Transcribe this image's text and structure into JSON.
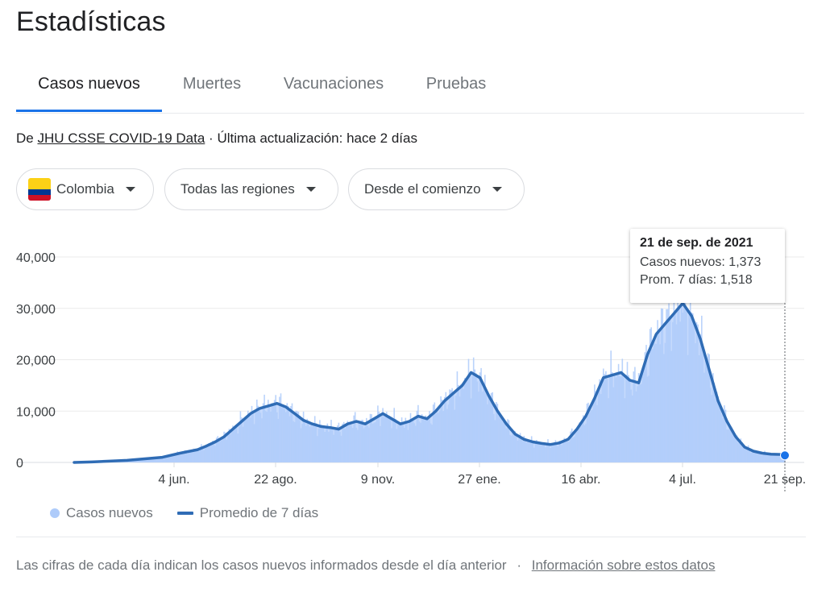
{
  "header": {
    "title": "Estadísticas"
  },
  "tabs": [
    {
      "label": "Casos nuevos",
      "active": true
    },
    {
      "label": "Muertes",
      "active": false
    },
    {
      "label": "Vacunaciones",
      "active": false
    },
    {
      "label": "Pruebas",
      "active": false
    }
  ],
  "source": {
    "prefix": "De",
    "link": "JHU CSSE COVID-19 Data",
    "separator": "·",
    "updated": "Última actualización: hace 2 días"
  },
  "filters": {
    "country": "Colombia",
    "region": "Todas las regiones",
    "period": "Desde el comienzo"
  },
  "flag_colors": {
    "yellow": "#fcd116",
    "blue": "#003893",
    "red": "#ce1126"
  },
  "tooltip": {
    "date": "21 de sep. de 2021",
    "cases_label": "Casos nuevos:",
    "cases_value": "1,373",
    "avg_label": "Prom. 7 días:",
    "avg_value": "1,518"
  },
  "legend": {
    "cases": "Casos nuevos",
    "average": "Promedio de 7 días"
  },
  "footer": {
    "note": "Las cifras de cada día indican los casos nuevos informados desde el día anterior",
    "separator": "·",
    "link": "Información sobre estos datos"
  },
  "chart_data": {
    "type": "area",
    "x_labels": [
      "4 jun.",
      "22 ago.",
      "9 nov.",
      "27 ene.",
      "16 abr.",
      "4 jul.",
      "21 sep."
    ],
    "y_ticks": [
      "0",
      "10,000",
      "20,000",
      "30,000",
      "40,000"
    ],
    "ylim": [
      0,
      40000
    ],
    "grid": true,
    "colors": {
      "bars": "#aecbfa",
      "area": "#c6dafc",
      "line": "#2f6cb5",
      "accent": "#1a73e8"
    },
    "series": [
      {
        "name": "Promedio de 7 días",
        "x": [
          "2020-03-06",
          "2020-03-20",
          "2020-04-03",
          "2020-04-17",
          "2020-05-01",
          "2020-05-15",
          "2020-05-29",
          "2020-06-12",
          "2020-06-19",
          "2020-06-26",
          "2020-07-03",
          "2020-07-10",
          "2020-07-17",
          "2020-07-24",
          "2020-07-31",
          "2020-08-07",
          "2020-08-14",
          "2020-08-21",
          "2020-08-28",
          "2020-09-04",
          "2020-09-11",
          "2020-09-18",
          "2020-09-25",
          "2020-10-02",
          "2020-10-09",
          "2020-10-16",
          "2020-10-23",
          "2020-10-30",
          "2020-11-06",
          "2020-11-13",
          "2020-11-20",
          "2020-11-27",
          "2020-12-04",
          "2020-12-11",
          "2020-12-18",
          "2020-12-25",
          "2021-01-01",
          "2021-01-08",
          "2021-01-15",
          "2021-01-22",
          "2021-01-29",
          "2021-02-05",
          "2021-02-12",
          "2021-02-19",
          "2021-02-26",
          "2021-03-05",
          "2021-03-12",
          "2021-03-19",
          "2021-03-26",
          "2021-04-02",
          "2021-04-09",
          "2021-04-16",
          "2021-04-23",
          "2021-04-30",
          "2021-05-07",
          "2021-05-14",
          "2021-05-21",
          "2021-05-28",
          "2021-06-04",
          "2021-06-11",
          "2021-06-18",
          "2021-06-25",
          "2021-07-02",
          "2021-07-09",
          "2021-07-16",
          "2021-07-23",
          "2021-07-30",
          "2021-08-06",
          "2021-08-13",
          "2021-08-20",
          "2021-08-27",
          "2021-09-03",
          "2021-09-10",
          "2021-09-21"
        ],
        "values": [
          0,
          100,
          250,
          400,
          700,
          1000,
          1800,
          2500,
          3200,
          4000,
          5000,
          6500,
          8000,
          9500,
          10500,
          11000,
          11500,
          10800,
          9500,
          8200,
          7500,
          7000,
          6800,
          6500,
          7500,
          8000,
          7500,
          8500,
          9500,
          8500,
          7500,
          8000,
          9000,
          8500,
          10000,
          12000,
          13500,
          15000,
          17500,
          16500,
          13000,
          10000,
          7500,
          5500,
          4500,
          4000,
          3700,
          3500,
          3800,
          4500,
          6500,
          9000,
          12500,
          16500,
          17000,
          17500,
          16000,
          15500,
          21000,
          25000,
          27000,
          29000,
          31000,
          28500,
          24000,
          18000,
          12000,
          8000,
          5000,
          3000,
          2200,
          1800,
          1600,
          1518
        ]
      },
      {
        "name": "Casos nuevos",
        "x": [
          "2021-09-21"
        ],
        "values": [
          1373
        ]
      }
    ]
  }
}
